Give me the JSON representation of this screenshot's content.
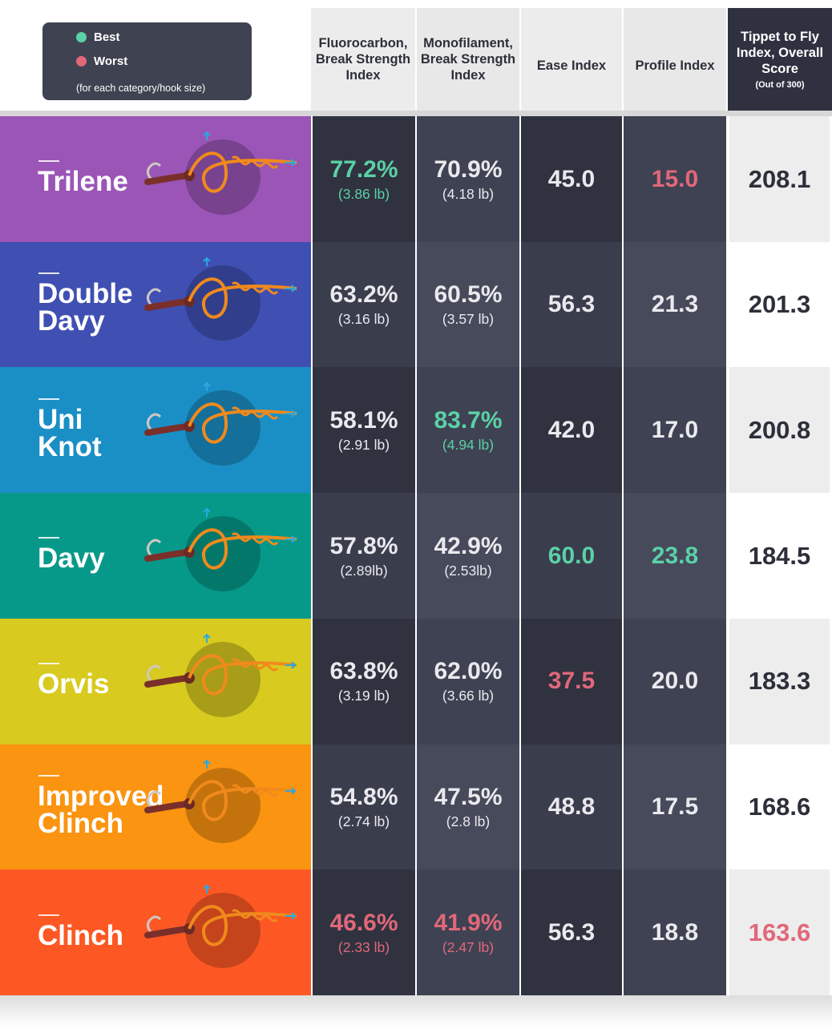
{
  "legend": {
    "best_label": "Best",
    "worst_label": "Worst",
    "note": "(for each category/hook size)",
    "best_color": "#5ad1a6",
    "worst_color": "#e0687a"
  },
  "headers": {
    "fluoro": "Fluorocarbon, Break Strength Index",
    "mono": "Monofilament, Break Strength Index",
    "ease": "Ease Index",
    "profile": "Profile Index",
    "score": "Tippet to Fly Index, Overall Score",
    "score_sub": "(Out of 300)"
  },
  "colors": {
    "best": "#5ad1a6",
    "worst": "#e0687a",
    "normal": "#e9e9ee",
    "dark_col": "#30323f",
    "light_col": "#3f4252"
  },
  "chart_data": {
    "type": "table",
    "columns": [
      "Fluorocarbon, Break Strength Index",
      "Monofilament, Break Strength Index",
      "Ease Index",
      "Profile Index",
      "Tippet to Fly Index, Overall Score"
    ],
    "rows": [
      {
        "name": "Trilene",
        "color": "#9a55b6",
        "fluoro": "77.2%",
        "fluoro_lb": "(3.86 lb)",
        "fluoro_flag": "best",
        "mono": "70.9%",
        "mono_lb": "(4.18 lb)",
        "mono_flag": "",
        "ease": "45.0",
        "ease_flag": "",
        "profile": "15.0",
        "profile_flag": "worst",
        "score": "208.1",
        "score_flag": ""
      },
      {
        "name": "Double Davy",
        "color": "#3f50b2",
        "fluoro": "63.2%",
        "fluoro_lb": "(3.16 lb)",
        "fluoro_flag": "",
        "mono": "60.5%",
        "mono_lb": "(3.57 lb)",
        "mono_flag": "",
        "ease": "56.3",
        "ease_flag": "",
        "profile": "21.3",
        "profile_flag": "",
        "score": "201.3",
        "score_flag": ""
      },
      {
        "name": "Uni Knot",
        "color": "#1a8fc6",
        "fluoro": "58.1%",
        "fluoro_lb": "(2.91 lb)",
        "fluoro_flag": "",
        "mono": "83.7%",
        "mono_lb": "(4.94 lb)",
        "mono_flag": "best",
        "ease": "42.0",
        "ease_flag": "",
        "profile": "17.0",
        "profile_flag": "",
        "score": "200.8",
        "score_flag": ""
      },
      {
        "name": "Davy",
        "color": "#06998a",
        "fluoro": "57.8%",
        "fluoro_lb": "(2.89lb)",
        "fluoro_flag": "",
        "mono": "42.9%",
        "mono_lb": "(2.53lb)",
        "mono_flag": "",
        "ease": "60.0",
        "ease_flag": "best",
        "profile": "23.8",
        "profile_flag": "best",
        "score": "184.5",
        "score_flag": ""
      },
      {
        "name": "Orvis",
        "color": "#d8ca1f",
        "fluoro": "63.8%",
        "fluoro_lb": "(3.19 lb)",
        "fluoro_flag": "",
        "mono": "62.0%",
        "mono_lb": "(3.66 lb)",
        "mono_flag": "",
        "ease": "37.5",
        "ease_flag": "worst",
        "profile": "20.0",
        "profile_flag": "",
        "score": "183.3",
        "score_flag": ""
      },
      {
        "name": "Improved Clinch",
        "color": "#fb9410",
        "fluoro": "54.8%",
        "fluoro_lb": "(2.74 lb)",
        "fluoro_flag": "",
        "mono": "47.5%",
        "mono_lb": "(2.8 lb)",
        "mono_flag": "",
        "ease": "48.8",
        "ease_flag": "",
        "profile": "17.5",
        "profile_flag": "",
        "score": "168.6",
        "score_flag": ""
      },
      {
        "name": "Clinch",
        "color": "#fd5824",
        "fluoro": "46.6%",
        "fluoro_lb": "(2.33 lb)",
        "fluoro_flag": "worst",
        "mono": "41.9%",
        "mono_lb": "(2.47 lb)",
        "mono_flag": "worst",
        "ease": "56.3",
        "ease_flag": "",
        "profile": "18.8",
        "profile_flag": "",
        "score": "163.6",
        "score_flag": "worst"
      }
    ]
  }
}
